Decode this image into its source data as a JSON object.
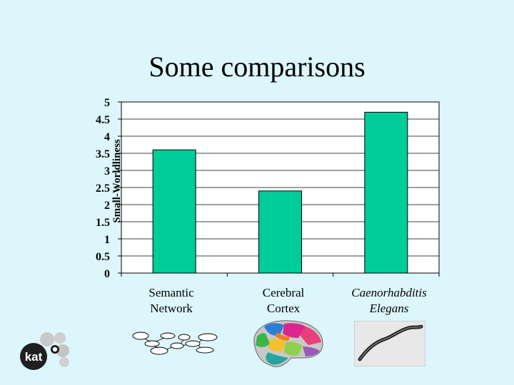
{
  "slide": {
    "title": "Some comparisons",
    "logo_text": "kat"
  },
  "chart_data": {
    "type": "bar",
    "title": "Some comparisons",
    "xlabel": "",
    "ylabel": "Small-Worldliness",
    "ylim": [
      0,
      5
    ],
    "yticks": [
      "0",
      "0.5",
      "1",
      "1.5",
      "2",
      "2.5",
      "3",
      "3.5",
      "4",
      "4.5",
      "5"
    ],
    "categories": [
      "Semantic Network",
      "Cerebral Cortex",
      "Caenorhabditis Elegans"
    ],
    "category_lines": [
      [
        "Semantic",
        "Network"
      ],
      [
        "Cerebral",
        "Cortex"
      ],
      [
        "Caenorhabditis",
        "Elegans"
      ]
    ],
    "values": [
      3.6,
      2.4,
      4.7
    ],
    "bar_color": "#00cc99",
    "plot_background": "#ffffff"
  },
  "thumbnails": [
    {
      "icon": "semantic-network-graph-icon"
    },
    {
      "icon": "brain-cortex-icon"
    },
    {
      "icon": "worm-photo-icon"
    }
  ],
  "colors": {
    "background": "#dcf6fb",
    "bar": "#00cc99",
    "axis": "#000000",
    "grid": "#000000"
  }
}
